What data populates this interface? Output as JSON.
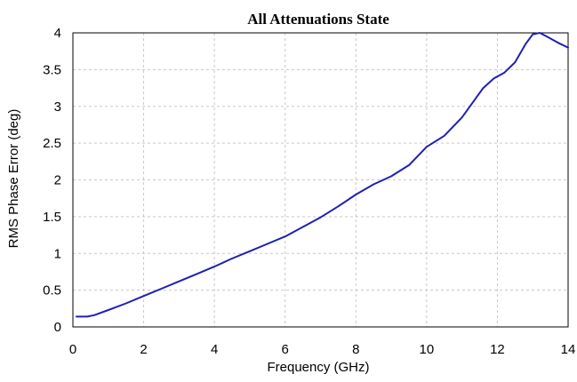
{
  "chart_data": {
    "type": "line",
    "title": "All Attenuations State",
    "xlabel": "Frequency (GHz)",
    "ylabel": "RMS Phase Error (deg)",
    "xlim": [
      0,
      14
    ],
    "ylim": [
      0,
      4
    ],
    "x_ticks": [
      0,
      2,
      4,
      6,
      8,
      10,
      12,
      14
    ],
    "y_ticks": [
      0,
      0.5,
      1,
      1.5,
      2,
      2.5,
      3,
      3.5,
      4
    ],
    "x_tick_labels": [
      "0",
      "2",
      "4",
      "6",
      "8",
      "10",
      "12",
      "14"
    ],
    "y_tick_labels": [
      "0",
      "0.5",
      "1",
      "1.5",
      "2",
      "2.5",
      "3",
      "3.5",
      "4"
    ],
    "grid": true,
    "line_color": "#1f1fb4",
    "series": [
      {
        "x": [
          0.1,
          0.4,
          0.6,
          1.0,
          1.5,
          2.0,
          2.5,
          3.0,
          3.5,
          4.0,
          4.5,
          5.0,
          5.5,
          6.0,
          6.5,
          7.0,
          7.5,
          8.0,
          8.5,
          9.0,
          9.5,
          10.0,
          10.5,
          11.0,
          11.3,
          11.6,
          11.9,
          12.2,
          12.5,
          12.8,
          13.0,
          13.2,
          13.4,
          13.7,
          14.0
        ],
        "values": [
          0.14,
          0.14,
          0.16,
          0.23,
          0.32,
          0.42,
          0.52,
          0.62,
          0.72,
          0.82,
          0.93,
          1.03,
          1.13,
          1.23,
          1.36,
          1.49,
          1.64,
          1.8,
          1.94,
          2.05,
          2.2,
          2.45,
          2.6,
          2.85,
          3.05,
          3.25,
          3.38,
          3.46,
          3.6,
          3.85,
          3.98,
          4.0,
          3.95,
          3.87,
          3.8
        ]
      }
    ]
  }
}
